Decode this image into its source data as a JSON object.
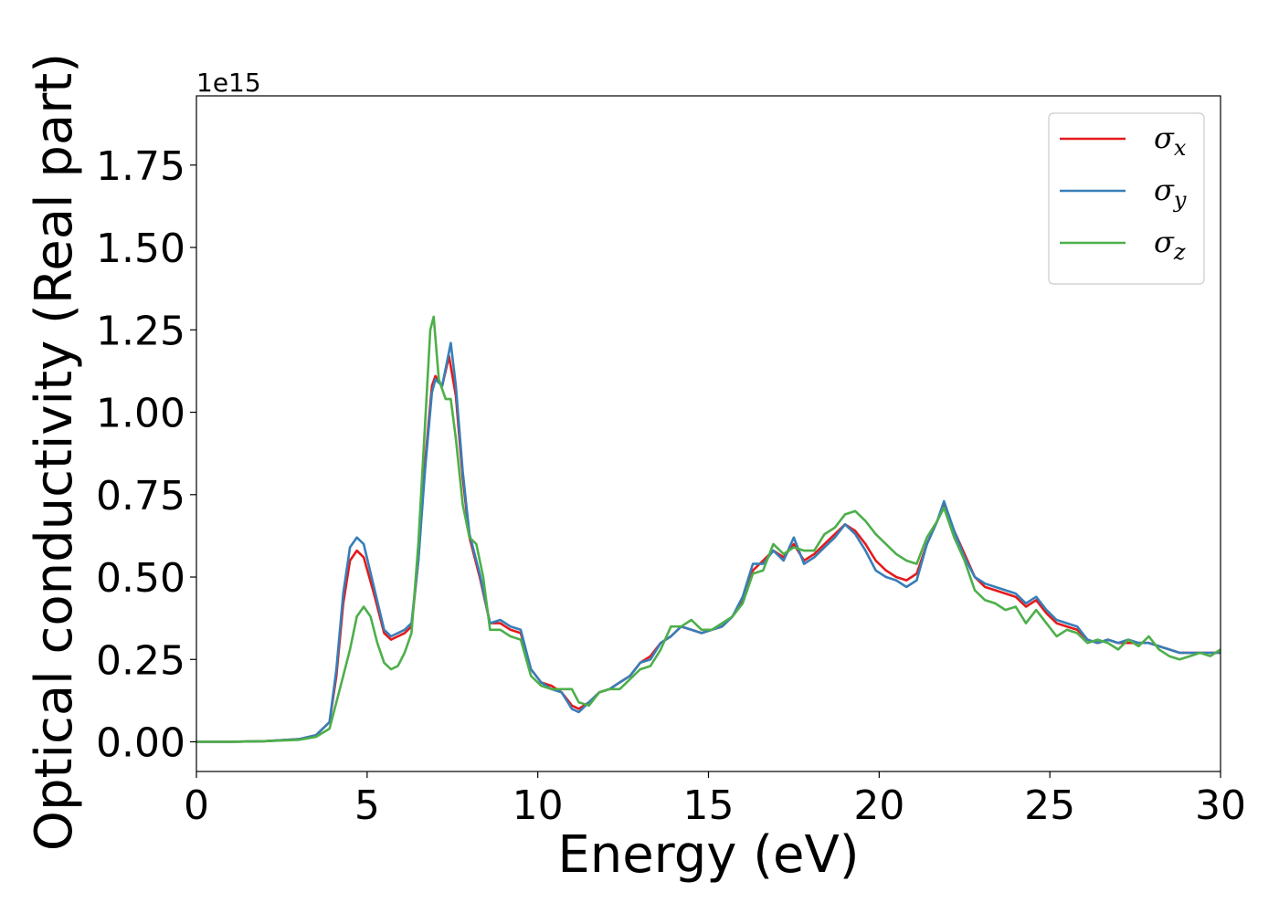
{
  "chart_data": {
    "type": "line",
    "title": "",
    "xlabel": "Energy (eV)",
    "ylabel": "Optical conductivity (Real part)",
    "y_offset_label": "1e15",
    "xlim": [
      0,
      30
    ],
    "ylim": [
      -0.09,
      1.96
    ],
    "x_ticks": [
      0,
      5,
      10,
      15,
      20,
      25,
      30
    ],
    "x_tick_labels": [
      "0",
      "5",
      "10",
      "15",
      "20",
      "25",
      "30"
    ],
    "y_ticks": [
      0.0,
      0.25,
      0.5,
      0.75,
      1.0,
      1.25,
      1.5,
      1.75
    ],
    "y_tick_labels": [
      "0.00",
      "0.25",
      "0.50",
      "0.75",
      "1.00",
      "1.25",
      "1.50",
      "1.75"
    ],
    "grid": false,
    "legend_position": "top-right",
    "series": [
      {
        "name": "σx",
        "color": "#e41a1c",
        "points": [
          [
            0,
            0.0
          ],
          [
            1,
            0.0
          ],
          [
            2,
            0.002
          ],
          [
            3,
            0.008
          ],
          [
            3.5,
            0.02
          ],
          [
            3.9,
            0.06
          ],
          [
            4.1,
            0.2
          ],
          [
            4.3,
            0.42
          ],
          [
            4.5,
            0.55
          ],
          [
            4.7,
            0.58
          ],
          [
            4.9,
            0.56
          ],
          [
            5.2,
            0.45
          ],
          [
            5.5,
            0.33
          ],
          [
            5.7,
            0.31
          ],
          [
            5.9,
            0.32
          ],
          [
            6.1,
            0.33
          ],
          [
            6.3,
            0.35
          ],
          [
            6.5,
            0.55
          ],
          [
            6.7,
            0.85
          ],
          [
            6.9,
            1.08
          ],
          [
            7.0,
            1.11
          ],
          [
            7.2,
            1.08
          ],
          [
            7.4,
            1.17
          ],
          [
            7.6,
            1.05
          ],
          [
            7.8,
            0.8
          ],
          [
            8.0,
            0.62
          ],
          [
            8.3,
            0.5
          ],
          [
            8.6,
            0.36
          ],
          [
            8.9,
            0.36
          ],
          [
            9.2,
            0.34
          ],
          [
            9.5,
            0.33
          ],
          [
            9.8,
            0.22
          ],
          [
            10.1,
            0.18
          ],
          [
            10.4,
            0.17
          ],
          [
            10.7,
            0.15
          ],
          [
            11.0,
            0.11
          ],
          [
            11.2,
            0.1
          ],
          [
            11.5,
            0.12
          ],
          [
            11.8,
            0.15
          ],
          [
            12.1,
            0.16
          ],
          [
            12.4,
            0.18
          ],
          [
            12.7,
            0.2
          ],
          [
            13.0,
            0.24
          ],
          [
            13.3,
            0.26
          ],
          [
            13.6,
            0.3
          ],
          [
            13.9,
            0.32
          ],
          [
            14.2,
            0.35
          ],
          [
            14.5,
            0.34
          ],
          [
            14.8,
            0.33
          ],
          [
            15.1,
            0.34
          ],
          [
            15.4,
            0.35
          ],
          [
            15.7,
            0.38
          ],
          [
            16.0,
            0.43
          ],
          [
            16.3,
            0.52
          ],
          [
            16.6,
            0.55
          ],
          [
            16.9,
            0.58
          ],
          [
            17.2,
            0.56
          ],
          [
            17.5,
            0.6
          ],
          [
            17.8,
            0.55
          ],
          [
            18.1,
            0.57
          ],
          [
            18.4,
            0.6
          ],
          [
            18.7,
            0.63
          ],
          [
            19.0,
            0.66
          ],
          [
            19.3,
            0.64
          ],
          [
            19.6,
            0.6
          ],
          [
            19.9,
            0.55
          ],
          [
            20.2,
            0.52
          ],
          [
            20.5,
            0.5
          ],
          [
            20.8,
            0.49
          ],
          [
            21.1,
            0.51
          ],
          [
            21.4,
            0.6
          ],
          [
            21.7,
            0.67
          ],
          [
            21.9,
            0.72
          ],
          [
            22.2,
            0.64
          ],
          [
            22.5,
            0.57
          ],
          [
            22.8,
            0.5
          ],
          [
            23.1,
            0.47
          ],
          [
            23.4,
            0.46
          ],
          [
            23.7,
            0.45
          ],
          [
            24.0,
            0.44
          ],
          [
            24.3,
            0.41
          ],
          [
            24.6,
            0.43
          ],
          [
            24.9,
            0.39
          ],
          [
            25.2,
            0.36
          ],
          [
            25.5,
            0.35
          ],
          [
            25.8,
            0.34
          ],
          [
            26.1,
            0.31
          ],
          [
            26.4,
            0.3
          ],
          [
            26.7,
            0.31
          ],
          [
            27.0,
            0.3
          ],
          [
            27.3,
            0.3
          ],
          [
            27.6,
            0.3
          ],
          [
            27.9,
            0.3
          ],
          [
            28.2,
            0.29
          ],
          [
            28.5,
            0.28
          ],
          [
            28.8,
            0.27
          ],
          [
            29.1,
            0.27
          ],
          [
            29.4,
            0.27
          ],
          [
            29.7,
            0.27
          ],
          [
            30.0,
            0.27
          ]
        ]
      },
      {
        "name": "σy",
        "color": "#377eb8",
        "points": [
          [
            0,
            0.0
          ],
          [
            1,
            0.0
          ],
          [
            2,
            0.002
          ],
          [
            3,
            0.008
          ],
          [
            3.5,
            0.02
          ],
          [
            3.9,
            0.06
          ],
          [
            4.1,
            0.22
          ],
          [
            4.3,
            0.45
          ],
          [
            4.5,
            0.59
          ],
          [
            4.7,
            0.62
          ],
          [
            4.9,
            0.6
          ],
          [
            5.2,
            0.47
          ],
          [
            5.5,
            0.34
          ],
          [
            5.7,
            0.32
          ],
          [
            5.9,
            0.33
          ],
          [
            6.1,
            0.34
          ],
          [
            6.3,
            0.36
          ],
          [
            6.5,
            0.55
          ],
          [
            6.7,
            0.83
          ],
          [
            6.9,
            1.06
          ],
          [
            7.0,
            1.1
          ],
          [
            7.2,
            1.08
          ],
          [
            7.45,
            1.21
          ],
          [
            7.6,
            1.08
          ],
          [
            7.8,
            0.82
          ],
          [
            8.0,
            0.63
          ],
          [
            8.3,
            0.51
          ],
          [
            8.6,
            0.36
          ],
          [
            8.9,
            0.37
          ],
          [
            9.2,
            0.35
          ],
          [
            9.5,
            0.34
          ],
          [
            9.8,
            0.22
          ],
          [
            10.1,
            0.18
          ],
          [
            10.4,
            0.16
          ],
          [
            10.7,
            0.15
          ],
          [
            11.0,
            0.1
          ],
          [
            11.2,
            0.09
          ],
          [
            11.5,
            0.12
          ],
          [
            11.8,
            0.15
          ],
          [
            12.1,
            0.16
          ],
          [
            12.4,
            0.18
          ],
          [
            12.7,
            0.2
          ],
          [
            13.0,
            0.24
          ],
          [
            13.3,
            0.25
          ],
          [
            13.6,
            0.3
          ],
          [
            13.9,
            0.32
          ],
          [
            14.2,
            0.35
          ],
          [
            14.5,
            0.34
          ],
          [
            14.8,
            0.33
          ],
          [
            15.1,
            0.34
          ],
          [
            15.4,
            0.35
          ],
          [
            15.7,
            0.38
          ],
          [
            16.0,
            0.44
          ],
          [
            16.3,
            0.54
          ],
          [
            16.6,
            0.54
          ],
          [
            16.9,
            0.58
          ],
          [
            17.2,
            0.55
          ],
          [
            17.5,
            0.62
          ],
          [
            17.8,
            0.54
          ],
          [
            18.1,
            0.56
          ],
          [
            18.4,
            0.59
          ],
          [
            18.7,
            0.62
          ],
          [
            19.0,
            0.66
          ],
          [
            19.3,
            0.63
          ],
          [
            19.6,
            0.58
          ],
          [
            19.9,
            0.52
          ],
          [
            20.2,
            0.5
          ],
          [
            20.5,
            0.49
          ],
          [
            20.8,
            0.47
          ],
          [
            21.1,
            0.49
          ],
          [
            21.4,
            0.6
          ],
          [
            21.7,
            0.67
          ],
          [
            21.9,
            0.73
          ],
          [
            22.2,
            0.64
          ],
          [
            22.5,
            0.56
          ],
          [
            22.8,
            0.5
          ],
          [
            23.1,
            0.48
          ],
          [
            23.4,
            0.47
          ],
          [
            23.7,
            0.46
          ],
          [
            24.0,
            0.45
          ],
          [
            24.3,
            0.42
          ],
          [
            24.6,
            0.44
          ],
          [
            24.9,
            0.4
          ],
          [
            25.2,
            0.37
          ],
          [
            25.5,
            0.36
          ],
          [
            25.8,
            0.35
          ],
          [
            26.1,
            0.31
          ],
          [
            26.4,
            0.3
          ],
          [
            26.7,
            0.31
          ],
          [
            27.0,
            0.3
          ],
          [
            27.3,
            0.31
          ],
          [
            27.6,
            0.3
          ],
          [
            27.9,
            0.3
          ],
          [
            28.2,
            0.29
          ],
          [
            28.5,
            0.28
          ],
          [
            28.8,
            0.27
          ],
          [
            29.1,
            0.27
          ],
          [
            29.4,
            0.27
          ],
          [
            29.7,
            0.27
          ],
          [
            30.0,
            0.27
          ]
        ]
      },
      {
        "name": "σz",
        "color": "#4daf4a",
        "points": [
          [
            0,
            0.0
          ],
          [
            1,
            0.0
          ],
          [
            2,
            0.002
          ],
          [
            3,
            0.006
          ],
          [
            3.5,
            0.015
          ],
          [
            3.9,
            0.04
          ],
          [
            4.1,
            0.12
          ],
          [
            4.3,
            0.2
          ],
          [
            4.5,
            0.28
          ],
          [
            4.7,
            0.38
          ],
          [
            4.9,
            0.41
          ],
          [
            5.1,
            0.38
          ],
          [
            5.3,
            0.3
          ],
          [
            5.5,
            0.24
          ],
          [
            5.7,
            0.22
          ],
          [
            5.9,
            0.23
          ],
          [
            6.1,
            0.27
          ],
          [
            6.3,
            0.33
          ],
          [
            6.5,
            0.6
          ],
          [
            6.7,
            0.97
          ],
          [
            6.85,
            1.25
          ],
          [
            6.95,
            1.29
          ],
          [
            7.1,
            1.1
          ],
          [
            7.3,
            1.04
          ],
          [
            7.45,
            1.04
          ],
          [
            7.6,
            0.92
          ],
          [
            7.8,
            0.72
          ],
          [
            8.0,
            0.62
          ],
          [
            8.2,
            0.6
          ],
          [
            8.4,
            0.5
          ],
          [
            8.6,
            0.34
          ],
          [
            8.9,
            0.34
          ],
          [
            9.2,
            0.32
          ],
          [
            9.5,
            0.31
          ],
          [
            9.8,
            0.2
          ],
          [
            10.1,
            0.17
          ],
          [
            10.4,
            0.16
          ],
          [
            10.7,
            0.16
          ],
          [
            11.0,
            0.16
          ],
          [
            11.2,
            0.12
          ],
          [
            11.5,
            0.11
          ],
          [
            11.8,
            0.15
          ],
          [
            12.1,
            0.16
          ],
          [
            12.4,
            0.16
          ],
          [
            12.7,
            0.19
          ],
          [
            13.0,
            0.22
          ],
          [
            13.3,
            0.23
          ],
          [
            13.6,
            0.28
          ],
          [
            13.9,
            0.35
          ],
          [
            14.2,
            0.35
          ],
          [
            14.5,
            0.37
          ],
          [
            14.8,
            0.34
          ],
          [
            15.1,
            0.34
          ],
          [
            15.4,
            0.36
          ],
          [
            15.7,
            0.38
          ],
          [
            16.0,
            0.42
          ],
          [
            16.3,
            0.51
          ],
          [
            16.6,
            0.52
          ],
          [
            16.9,
            0.6
          ],
          [
            17.2,
            0.57
          ],
          [
            17.5,
            0.59
          ],
          [
            17.8,
            0.58
          ],
          [
            18.1,
            0.58
          ],
          [
            18.4,
            0.63
          ],
          [
            18.7,
            0.65
          ],
          [
            19.0,
            0.69
          ],
          [
            19.3,
            0.7
          ],
          [
            19.6,
            0.67
          ],
          [
            19.9,
            0.63
          ],
          [
            20.2,
            0.6
          ],
          [
            20.5,
            0.57
          ],
          [
            20.8,
            0.55
          ],
          [
            21.1,
            0.54
          ],
          [
            21.4,
            0.62
          ],
          [
            21.7,
            0.67
          ],
          [
            21.9,
            0.71
          ],
          [
            22.2,
            0.62
          ],
          [
            22.5,
            0.55
          ],
          [
            22.8,
            0.46
          ],
          [
            23.1,
            0.43
          ],
          [
            23.4,
            0.42
          ],
          [
            23.7,
            0.4
          ],
          [
            24.0,
            0.41
          ],
          [
            24.3,
            0.36
          ],
          [
            24.6,
            0.4
          ],
          [
            24.9,
            0.36
          ],
          [
            25.2,
            0.32
          ],
          [
            25.5,
            0.34
          ],
          [
            25.8,
            0.33
          ],
          [
            26.1,
            0.3
          ],
          [
            26.4,
            0.31
          ],
          [
            26.7,
            0.3
          ],
          [
            27.0,
            0.28
          ],
          [
            27.3,
            0.31
          ],
          [
            27.6,
            0.29
          ],
          [
            27.9,
            0.32
          ],
          [
            28.2,
            0.28
          ],
          [
            28.5,
            0.26
          ],
          [
            28.8,
            0.25
          ],
          [
            29.1,
            0.26
          ],
          [
            29.4,
            0.27
          ],
          [
            29.7,
            0.26
          ],
          [
            30.0,
            0.28
          ]
        ]
      }
    ]
  }
}
